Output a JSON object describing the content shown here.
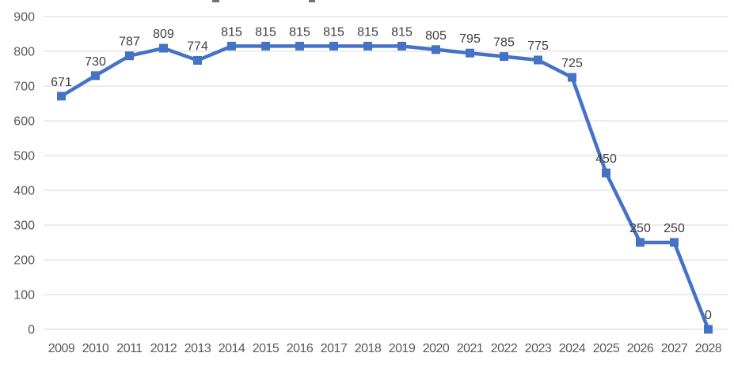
{
  "chart_data": {
    "type": "line",
    "title": "",
    "xlabel": "",
    "ylabel": "",
    "categories": [
      "2009",
      "2010",
      "2011",
      "2012",
      "2013",
      "2014",
      "2015",
      "2016",
      "2017",
      "2018",
      "2019",
      "2020",
      "2021",
      "2022",
      "2023",
      "2024",
      "2025",
      "2026",
      "2027",
      "2028"
    ],
    "values": [
      671,
      730,
      787,
      809,
      774,
      815,
      815,
      815,
      815,
      815,
      815,
      805,
      795,
      785,
      775,
      725,
      450,
      250,
      250,
      0
    ],
    "ylim": [
      0,
      900
    ],
    "y_ticks": [
      0,
      100,
      200,
      300,
      400,
      500,
      600,
      700,
      800,
      900
    ],
    "grid": true,
    "legend_position": "none",
    "data_labels": true,
    "marker": "square",
    "colors": {
      "line": "#4472C4",
      "marker": "#4472C4",
      "gridline": "#D9D9D9",
      "axis_text": "#595959",
      "data_label_text": "#404040",
      "background": "#FFFFFF"
    }
  }
}
